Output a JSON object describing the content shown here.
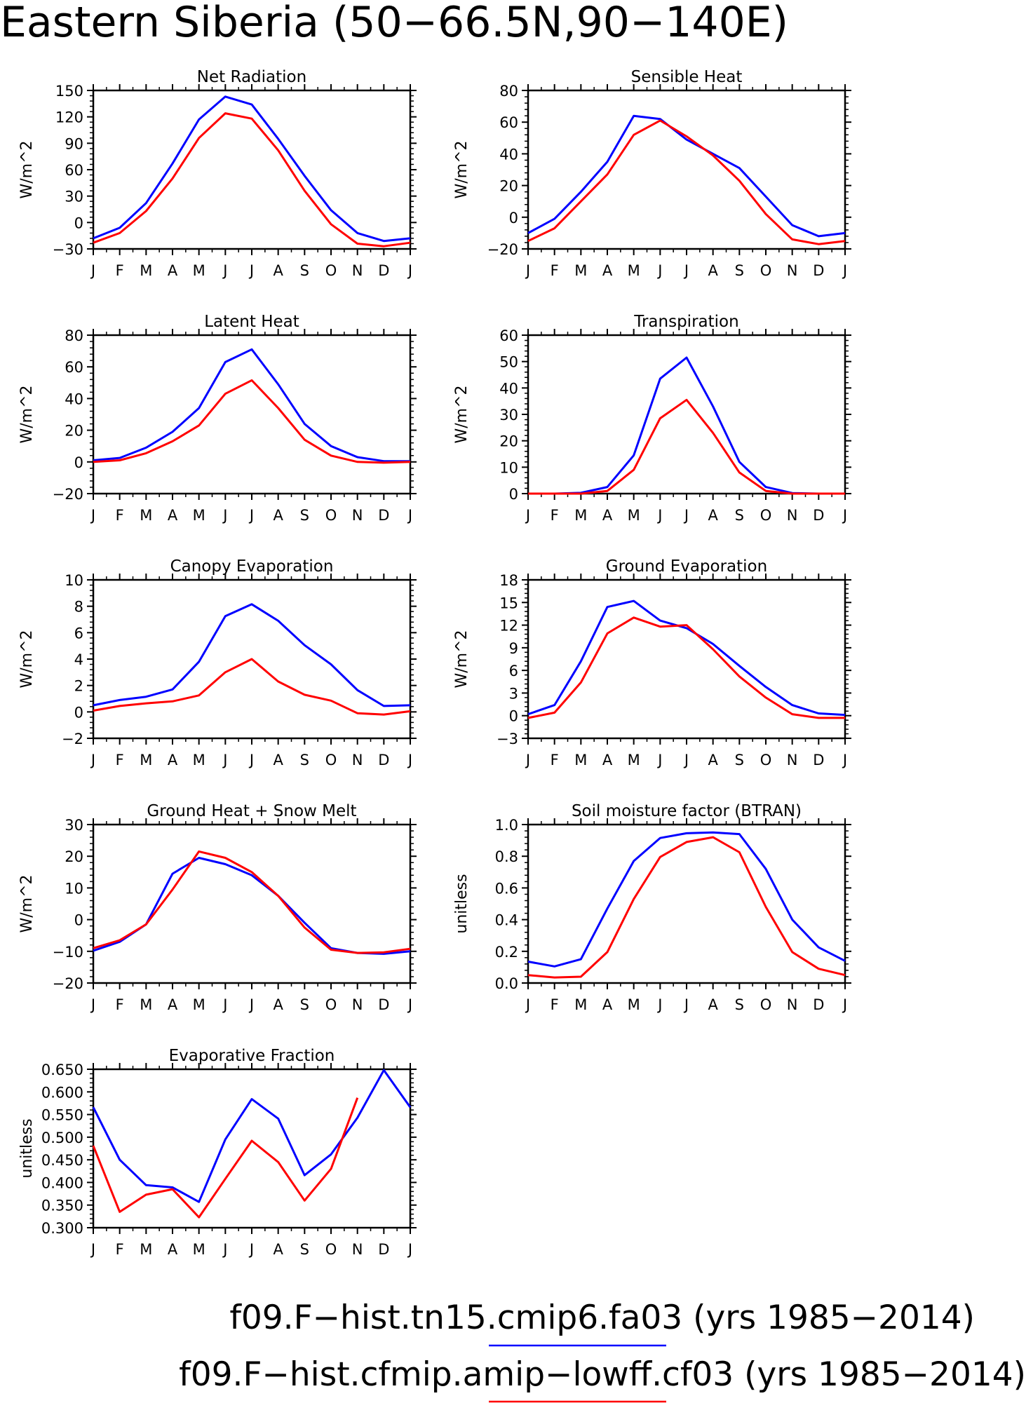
{
  "figure": {
    "title": "Eastern Siberia (50-66.5N,90-140E)"
  },
  "legend": [
    {
      "label": "f09.F-hist.tn15.cmip6.fa03 (yrs 1985-2014)",
      "color": "#0000ff"
    },
    {
      "label": "f09.F-hist.cfmip.amip-lowff.cf03 (yrs 1985-2014)",
      "color": "#ff0000"
    }
  ],
  "chart_data": [
    {
      "type": "line",
      "title": "Net Radiation",
      "ylabel": "W/m^2",
      "xlabel": "",
      "categories": [
        "J",
        "F",
        "M",
        "A",
        "M",
        "J",
        "J",
        "A",
        "S",
        "O",
        "N",
        "D",
        "J"
      ],
      "ylim": [
        -30,
        150
      ],
      "yticks": [
        -30,
        0,
        30,
        60,
        90,
        120,
        150
      ],
      "ytick_labels": [
        "−30",
        "0",
        "30",
        "60",
        "90",
        "120",
        "150"
      ],
      "series": [
        {
          "color": "#0000ff",
          "values": [
            -18,
            -6,
            22,
            67,
            117,
            143,
            134,
            95,
            53,
            14,
            -12,
            -21,
            -18
          ]
        },
        {
          "color": "#ff0000",
          "values": [
            -23,
            -12,
            13,
            50,
            96,
            124,
            118,
            82,
            36,
            -2,
            -24,
            -27,
            -23
          ]
        }
      ]
    },
    {
      "type": "line",
      "title": "Sensible Heat",
      "ylabel": "W/m^2",
      "xlabel": "",
      "categories": [
        "J",
        "F",
        "M",
        "A",
        "M",
        "J",
        "J",
        "A",
        "S",
        "O",
        "N",
        "D",
        "J"
      ],
      "ylim": [
        -20,
        80
      ],
      "yticks": [
        -20,
        0,
        20,
        40,
        60,
        80
      ],
      "ytick_labels": [
        "−20",
        "0",
        "20",
        "40",
        "60",
        "80"
      ],
      "series": [
        {
          "color": "#0000ff",
          "values": [
            -10,
            -1,
            16,
            35,
            64,
            62,
            49,
            40,
            31,
            13,
            -5,
            -12,
            -10
          ]
        },
        {
          "color": "#ff0000",
          "values": [
            -15,
            -7,
            10,
            27,
            52,
            61,
            51,
            39,
            23,
            2,
            -14,
            -17,
            -15
          ]
        }
      ]
    },
    {
      "type": "line",
      "title": "Latent Heat",
      "ylabel": "W/m^2",
      "xlabel": "",
      "categories": [
        "J",
        "F",
        "M",
        "A",
        "M",
        "J",
        "J",
        "A",
        "S",
        "O",
        "N",
        "D",
        "J"
      ],
      "ylim": [
        -20,
        80
      ],
      "yticks": [
        -20,
        0,
        20,
        40,
        60,
        80
      ],
      "ytick_labels": [
        "−20",
        "0",
        "20",
        "40",
        "60",
        "80"
      ],
      "series": [
        {
          "color": "#0000ff",
          "values": [
            1,
            2.5,
            9,
            19,
            34,
            63,
            71,
            49,
            24,
            10,
            3,
            0.5,
            0.5
          ]
        },
        {
          "color": "#ff0000",
          "values": [
            0,
            1,
            5.5,
            13,
            23,
            43,
            51.5,
            34,
            14,
            4,
            0,
            -0.5,
            0
          ]
        }
      ]
    },
    {
      "type": "line",
      "title": "Transpiration",
      "ylabel": "W/m^2",
      "xlabel": "",
      "categories": [
        "J",
        "F",
        "M",
        "A",
        "M",
        "J",
        "J",
        "A",
        "S",
        "O",
        "N",
        "D",
        "J"
      ],
      "ylim": [
        0,
        60
      ],
      "yticks": [
        0,
        10,
        20,
        30,
        40,
        50,
        60
      ],
      "ytick_labels": [
        "0",
        "10",
        "20",
        "30",
        "40",
        "50",
        "60"
      ],
      "series": [
        {
          "color": "#0000ff",
          "values": [
            0,
            0,
            0.3,
            2.5,
            14.5,
            43.5,
            51.5,
            33,
            12,
            2.5,
            0.2,
            0,
            0
          ]
        },
        {
          "color": "#ff0000",
          "values": [
            0,
            0,
            0,
            1,
            9,
            28.5,
            35.5,
            23,
            8,
            1,
            0,
            0,
            0
          ]
        }
      ]
    },
    {
      "type": "line",
      "title": "Canopy Evaporation",
      "ylabel": "W/m^2",
      "xlabel": "",
      "categories": [
        "J",
        "F",
        "M",
        "A",
        "M",
        "J",
        "J",
        "A",
        "S",
        "O",
        "N",
        "D",
        "J"
      ],
      "ylim": [
        -2,
        10
      ],
      "yticks": [
        -2,
        0,
        2,
        4,
        6,
        8,
        10
      ],
      "ytick_labels": [
        "−2",
        "0",
        "2",
        "4",
        "6",
        "8",
        "10"
      ],
      "series": [
        {
          "color": "#0000ff",
          "values": [
            0.5,
            0.9,
            1.15,
            1.7,
            3.8,
            7.25,
            8.15,
            6.9,
            5.05,
            3.6,
            1.65,
            0.45,
            0.5
          ]
        },
        {
          "color": "#ff0000",
          "values": [
            0.1,
            0.45,
            0.65,
            0.8,
            1.25,
            3,
            4,
            2.3,
            1.3,
            0.85,
            -0.1,
            -0.2,
            0.05
          ]
        }
      ]
    },
    {
      "type": "line",
      "title": "Ground Evaporation",
      "ylabel": "W/m^2",
      "xlabel": "",
      "categories": [
        "J",
        "F",
        "M",
        "A",
        "M",
        "J",
        "J",
        "A",
        "S",
        "O",
        "N",
        "D",
        "J"
      ],
      "ylim": [
        -3,
        18
      ],
      "yticks": [
        -3,
        0,
        3,
        6,
        9,
        12,
        15,
        18
      ],
      "ytick_labels": [
        "−3",
        "0",
        "3",
        "6",
        "9",
        "12",
        "15",
        "18"
      ],
      "series": [
        {
          "color": "#0000ff",
          "values": [
            0.2,
            1.4,
            7.2,
            14.4,
            15.2,
            12.6,
            11.6,
            9.5,
            6.6,
            3.8,
            1.4,
            0.3,
            0.1
          ]
        },
        {
          "color": "#ff0000",
          "values": [
            -0.3,
            0.4,
            4.4,
            10.9,
            13,
            11.8,
            12,
            8.8,
            5.2,
            2.4,
            0.2,
            -0.3,
            -0.3
          ]
        }
      ]
    },
    {
      "type": "line",
      "title": "Ground Heat + Snow Melt",
      "ylabel": "W/m^2",
      "xlabel": "",
      "categories": [
        "J",
        "F",
        "M",
        "A",
        "M",
        "J",
        "J",
        "A",
        "S",
        "O",
        "N",
        "D",
        "J"
      ],
      "ylim": [
        -20,
        30
      ],
      "yticks": [
        -20,
        -10,
        0,
        10,
        20,
        30
      ],
      "ytick_labels": [
        "−20",
        "−10",
        "0",
        "10",
        "20",
        "30"
      ],
      "series": [
        {
          "color": "#0000ff",
          "values": [
            -9.8,
            -7,
            -1.5,
            14.5,
            19.5,
            17.5,
            14,
            7.5,
            -1,
            -9,
            -10.5,
            -10.8,
            -10
          ]
        },
        {
          "color": "#ff0000",
          "values": [
            -9,
            -6.5,
            -1.5,
            9.5,
            21.5,
            19.5,
            15,
            7.5,
            -2.5,
            -9.5,
            -10.5,
            -10.3,
            -9.2
          ]
        }
      ]
    },
    {
      "type": "line",
      "title": "Soil moisture factor (BTRAN)",
      "ylabel": "unitless",
      "xlabel": "",
      "categories": [
        "J",
        "F",
        "M",
        "A",
        "M",
        "J",
        "J",
        "A",
        "S",
        "O",
        "N",
        "D",
        "J"
      ],
      "ylim": [
        0,
        1
      ],
      "yticks": [
        0,
        0.2,
        0.4,
        0.6,
        0.8,
        1.0
      ],
      "ytick_labels": [
        "0.0",
        "0.2",
        "0.4",
        "0.6",
        "0.8",
        "1.0"
      ],
      "series": [
        {
          "color": "#0000ff",
          "values": [
            0.135,
            0.105,
            0.15,
            0.47,
            0.77,
            0.915,
            0.945,
            0.95,
            0.94,
            0.72,
            0.4,
            0.225,
            0.14
          ]
        },
        {
          "color": "#ff0000",
          "values": [
            0.05,
            0.035,
            0.04,
            0.195,
            0.53,
            0.795,
            0.89,
            0.92,
            0.825,
            0.48,
            0.195,
            0.09,
            0.05
          ]
        }
      ]
    },
    {
      "type": "line",
      "title": "Evaporative Fraction",
      "ylabel": "unitless",
      "xlabel": "",
      "categories": [
        "J",
        "F",
        "M",
        "A",
        "M",
        "J",
        "J",
        "A",
        "S",
        "O",
        "N",
        "D",
        "J"
      ],
      "ylim": [
        0.3,
        0.65
      ],
      "yticks": [
        0.3,
        0.35,
        0.4,
        0.45,
        0.5,
        0.55,
        0.6,
        0.65
      ],
      "ytick_labels": [
        "0.300",
        "0.350",
        "0.400",
        "0.450",
        "0.500",
        "0.550",
        "0.600",
        "0.650"
      ],
      "series": [
        {
          "color": "#0000ff",
          "values": [
            0.566,
            0.45,
            0.394,
            0.389,
            0.357,
            0.495,
            0.584,
            0.541,
            0.416,
            0.462,
            0.543,
            0.648,
            0.566
          ]
        },
        {
          "color": "#ff0000",
          "values": [
            0.481,
            0.335,
            0.373,
            0.385,
            0.323,
            0.408,
            0.492,
            0.445,
            0.36,
            0.43,
            0.587,
            null,
            null
          ]
        }
      ]
    }
  ]
}
